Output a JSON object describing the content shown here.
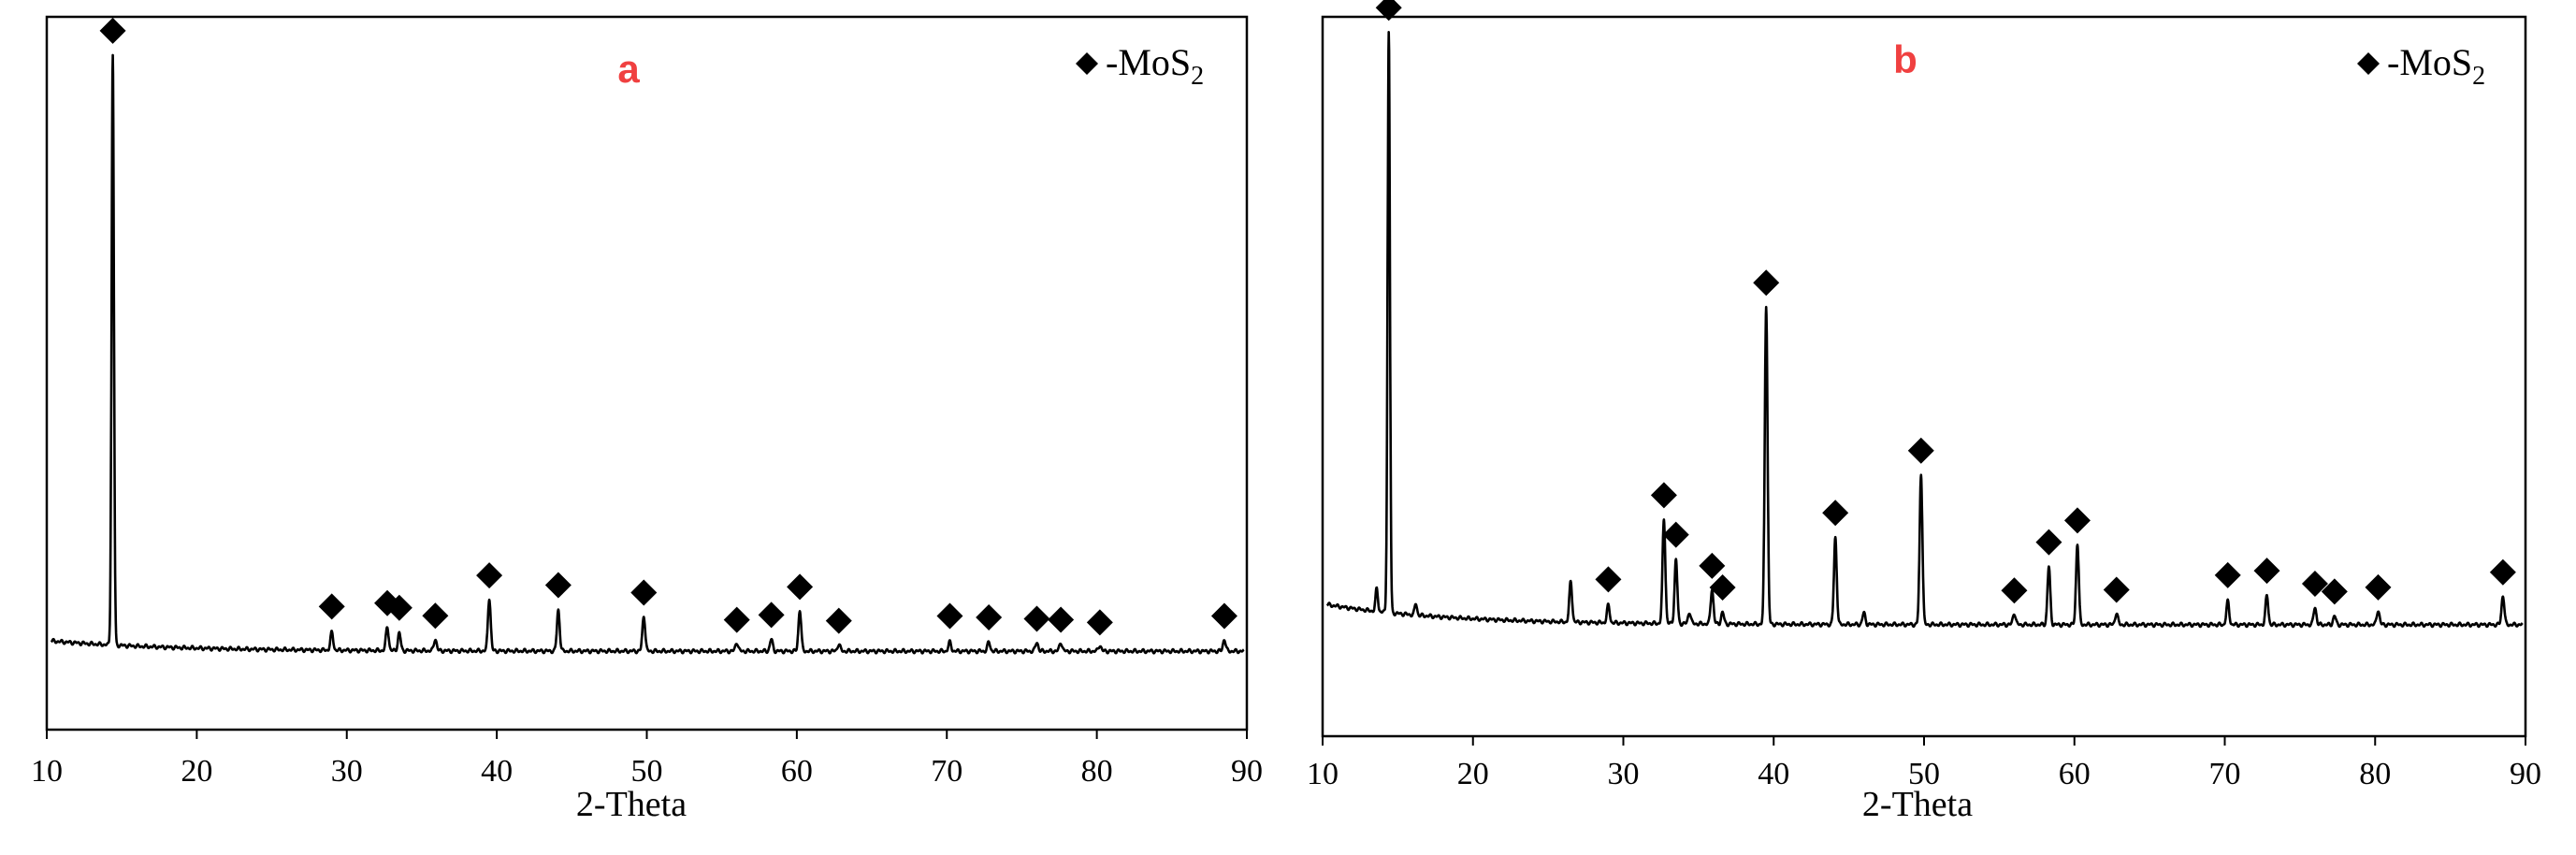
{
  "colors": {
    "panel_letter": "#f04040",
    "line": "#000000",
    "marker": "#000000"
  },
  "chart_data": [
    {
      "type": "line",
      "panel": "a",
      "xlabel": "2-Theta",
      "ylabel": "",
      "xlim": [
        10,
        90
      ],
      "xticks": [
        "10",
        "20",
        "30",
        "40",
        "50",
        "60",
        "70",
        "80",
        "90"
      ],
      "y_ticks_shown": false,
      "grid": false,
      "legend": {
        "placement": "top-right",
        "symbol": "diamond-icon",
        "label": "-MoS",
        "subscript": "2"
      },
      "baseline": 3,
      "peaks": [
        {
          "x": 14.4,
          "y": 100
        },
        {
          "x": 29.0,
          "y": 3
        },
        {
          "x": 32.7,
          "y": 4
        },
        {
          "x": 33.5,
          "y": 3
        },
        {
          "x": 35.9,
          "y": 2
        },
        {
          "x": 39.5,
          "y": 9
        },
        {
          "x": 44.1,
          "y": 7
        },
        {
          "x": 49.8,
          "y": 6
        },
        {
          "x": 56.0,
          "y": 1.5
        },
        {
          "x": 58.3,
          "y": 2
        },
        {
          "x": 60.2,
          "y": 7
        },
        {
          "x": 62.8,
          "y": 1.2
        },
        {
          "x": 70.2,
          "y": 1.5
        },
        {
          "x": 72.8,
          "y": 1.5
        },
        {
          "x": 76.0,
          "y": 1.5
        },
        {
          "x": 77.6,
          "y": 1.5
        },
        {
          "x": 80.2,
          "y": 1
        },
        {
          "x": 88.5,
          "y": 2
        }
      ],
      "minor_peaks": [],
      "markers_x": [
        14.4,
        29.0,
        32.7,
        33.5,
        35.9,
        39.5,
        44.1,
        49.8,
        56.0,
        58.3,
        60.2,
        62.8,
        70.2,
        72.8,
        76.0,
        77.6,
        80.2,
        88.5
      ]
    },
    {
      "type": "line",
      "panel": "b",
      "xlabel": "2-Theta",
      "ylabel": "",
      "xlim": [
        10,
        90
      ],
      "xticks": [
        "10",
        "20",
        "30",
        "40",
        "50",
        "60",
        "70",
        "80",
        "90"
      ],
      "y_ticks_shown": false,
      "grid": false,
      "legend": {
        "placement": "top-right",
        "symbol": "diamond-icon",
        "label": "-MoS",
        "subscript": "2"
      },
      "baseline": 6,
      "peaks": [
        {
          "x": 14.4,
          "y": 100
        },
        {
          "x": 29.0,
          "y": 3
        },
        {
          "x": 32.7,
          "y": 18
        },
        {
          "x": 33.5,
          "y": 11
        },
        {
          "x": 35.9,
          "y": 6
        },
        {
          "x": 36.6,
          "y": 2
        },
        {
          "x": 39.5,
          "y": 55
        },
        {
          "x": 44.1,
          "y": 15
        },
        {
          "x": 49.8,
          "y": 26
        },
        {
          "x": 56.0,
          "y": 2
        },
        {
          "x": 58.3,
          "y": 10
        },
        {
          "x": 60.2,
          "y": 14
        },
        {
          "x": 62.8,
          "y": 2
        },
        {
          "x": 70.2,
          "y": 4
        },
        {
          "x": 72.8,
          "y": 5
        },
        {
          "x": 76.0,
          "y": 3
        },
        {
          "x": 77.3,
          "y": 1.5
        },
        {
          "x": 80.2,
          "y": 2.5
        },
        {
          "x": 88.5,
          "y": 5
        }
      ],
      "minor_peaks": [
        {
          "x": 13.6,
          "y": 4
        },
        {
          "x": 16.2,
          "y": 2
        },
        {
          "x": 26.5,
          "y": 7
        },
        {
          "x": 34.4,
          "y": 2
        },
        {
          "x": 46.0,
          "y": 2
        }
      ],
      "markers_x": [
        14.4,
        29.0,
        32.7,
        33.5,
        35.9,
        36.6,
        39.5,
        44.1,
        49.8,
        56.0,
        58.3,
        60.2,
        62.8,
        70.2,
        72.8,
        76.0,
        77.3,
        80.2,
        88.5
      ]
    }
  ]
}
